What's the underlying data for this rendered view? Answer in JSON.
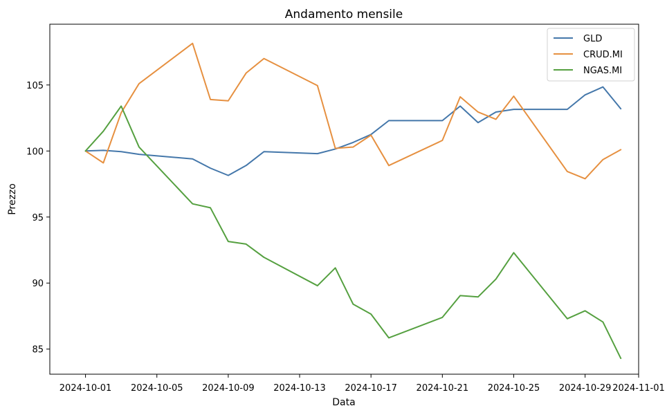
{
  "chart_data": {
    "type": "line",
    "title": "Andamento mensile",
    "xlabel": "Data",
    "ylabel": "Prezzo",
    "ylim": [
      83.1,
      109.6
    ],
    "xlim": [
      "2024-09-29",
      "2024-11-01"
    ],
    "x_ticks": [
      "2024-10-01",
      "2024-10-05",
      "2024-10-09",
      "2024-10-13",
      "2024-10-17",
      "2024-10-21",
      "2024-10-25",
      "2024-10-29",
      "2024-11-01"
    ],
    "y_ticks": [
      85,
      90,
      95,
      100,
      105
    ],
    "grid": false,
    "legend_position": "top-right",
    "series": [
      {
        "name": "GLD",
        "color": "#4477aa",
        "points": [
          [
            "2024-10-01",
            100.0
          ],
          [
            "2024-10-02",
            100.05
          ],
          [
            "2024-10-03",
            99.95
          ],
          [
            "2024-10-04",
            99.75
          ],
          [
            "2024-10-07",
            99.4
          ],
          [
            "2024-10-08",
            98.7
          ],
          [
            "2024-10-09",
            98.15
          ],
          [
            "2024-10-10",
            98.9
          ],
          [
            "2024-10-11",
            99.95
          ],
          [
            "2024-10-14",
            99.8
          ],
          [
            "2024-10-15",
            100.15
          ],
          [
            "2024-10-16",
            100.65
          ],
          [
            "2024-10-17",
            101.25
          ],
          [
            "2024-10-18",
            102.3
          ],
          [
            "2024-10-21",
            102.3
          ],
          [
            "2024-10-22",
            103.4
          ],
          [
            "2024-10-23",
            102.15
          ],
          [
            "2024-10-24",
            102.95
          ],
          [
            "2024-10-25",
            103.15
          ],
          [
            "2024-10-28",
            103.15
          ],
          [
            "2024-10-29",
            104.25
          ],
          [
            "2024-10-30",
            104.85
          ],
          [
            "2024-10-31",
            103.2
          ]
        ]
      },
      {
        "name": "CRUD.MI",
        "color": "#e69040",
        "points": [
          [
            "2024-10-01",
            100.0
          ],
          [
            "2024-10-02",
            99.1
          ],
          [
            "2024-10-03",
            102.9
          ],
          [
            "2024-10-04",
            105.1
          ],
          [
            "2024-10-07",
            108.15
          ],
          [
            "2024-10-08",
            103.9
          ],
          [
            "2024-10-09",
            103.8
          ],
          [
            "2024-10-10",
            105.9
          ],
          [
            "2024-10-11",
            107.0
          ],
          [
            "2024-10-14",
            104.95
          ],
          [
            "2024-10-15",
            100.2
          ],
          [
            "2024-10-16",
            100.3
          ],
          [
            "2024-10-17",
            101.2
          ],
          [
            "2024-10-18",
            98.9
          ],
          [
            "2024-10-21",
            100.8
          ],
          [
            "2024-10-22",
            104.1
          ],
          [
            "2024-10-23",
            102.95
          ],
          [
            "2024-10-24",
            102.4
          ],
          [
            "2024-10-25",
            104.15
          ],
          [
            "2024-10-28",
            98.45
          ],
          [
            "2024-10-29",
            97.9
          ],
          [
            "2024-10-30",
            99.35
          ],
          [
            "2024-10-31",
            100.1
          ]
        ]
      },
      {
        "name": "NGAS.MI",
        "color": "#55a040",
        "points": [
          [
            "2024-10-01",
            100.0
          ],
          [
            "2024-10-02",
            101.5
          ],
          [
            "2024-10-03",
            103.4
          ],
          [
            "2024-10-04",
            100.3
          ],
          [
            "2024-10-07",
            96.0
          ],
          [
            "2024-10-08",
            95.7
          ],
          [
            "2024-10-09",
            93.15
          ],
          [
            "2024-10-10",
            92.95
          ],
          [
            "2024-10-11",
            91.95
          ],
          [
            "2024-10-14",
            89.8
          ],
          [
            "2024-10-15",
            91.15
          ],
          [
            "2024-10-16",
            88.4
          ],
          [
            "2024-10-17",
            87.65
          ],
          [
            "2024-10-18",
            85.85
          ],
          [
            "2024-10-21",
            87.4
          ],
          [
            "2024-10-22",
            89.05
          ],
          [
            "2024-10-23",
            88.95
          ],
          [
            "2024-10-24",
            90.3
          ],
          [
            "2024-10-25",
            92.3
          ],
          [
            "2024-10-28",
            87.3
          ],
          [
            "2024-10-29",
            87.9
          ],
          [
            "2024-10-30",
            87.05
          ],
          [
            "2024-10-31",
            84.3
          ]
        ]
      }
    ]
  }
}
